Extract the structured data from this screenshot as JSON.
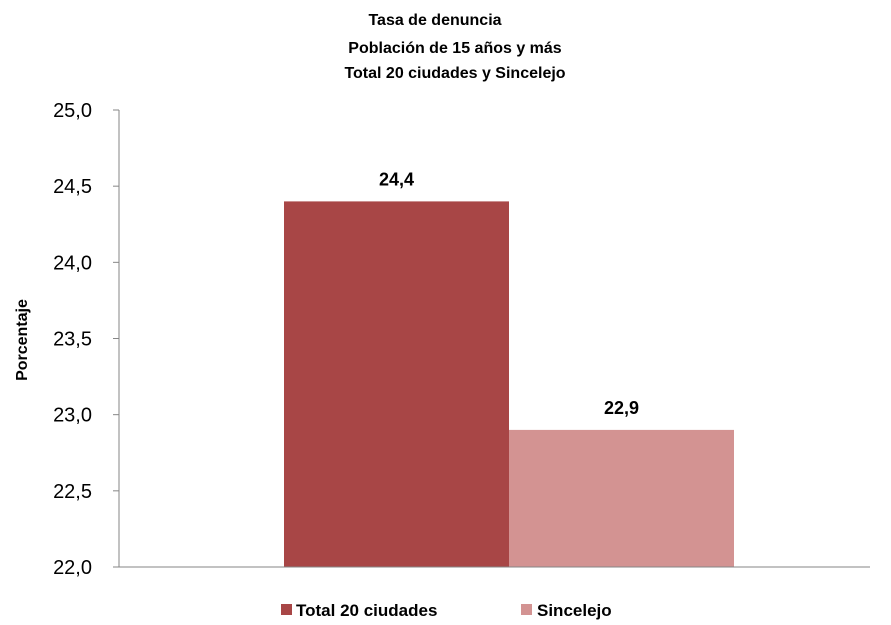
{
  "chart_data": {
    "type": "bar",
    "title": [
      "Tasa de denuncia",
      "Población de 15 años y más",
      "Total 20 ciudades y Sincelejo"
    ],
    "ylabel": "Porcentaje",
    "xlabel": "",
    "ylim": [
      22.0,
      25.0
    ],
    "yticks": [
      22.0,
      22.5,
      23.0,
      23.5,
      24.0,
      24.5,
      25.0
    ],
    "ytick_labels": [
      "22,0",
      "22,5",
      "23,0",
      "23,5",
      "24,0",
      "24,5",
      "25,0"
    ],
    "grid": false,
    "legend_position": "bottom",
    "series": [
      {
        "name": "Total 20 ciudades",
        "value": 24.4,
        "label": "24,4",
        "color": "#A84646"
      },
      {
        "name": "Sincelejo",
        "value": 22.9,
        "label": "22,9",
        "color": "#D39392"
      }
    ],
    "axis_color": "#868686"
  }
}
